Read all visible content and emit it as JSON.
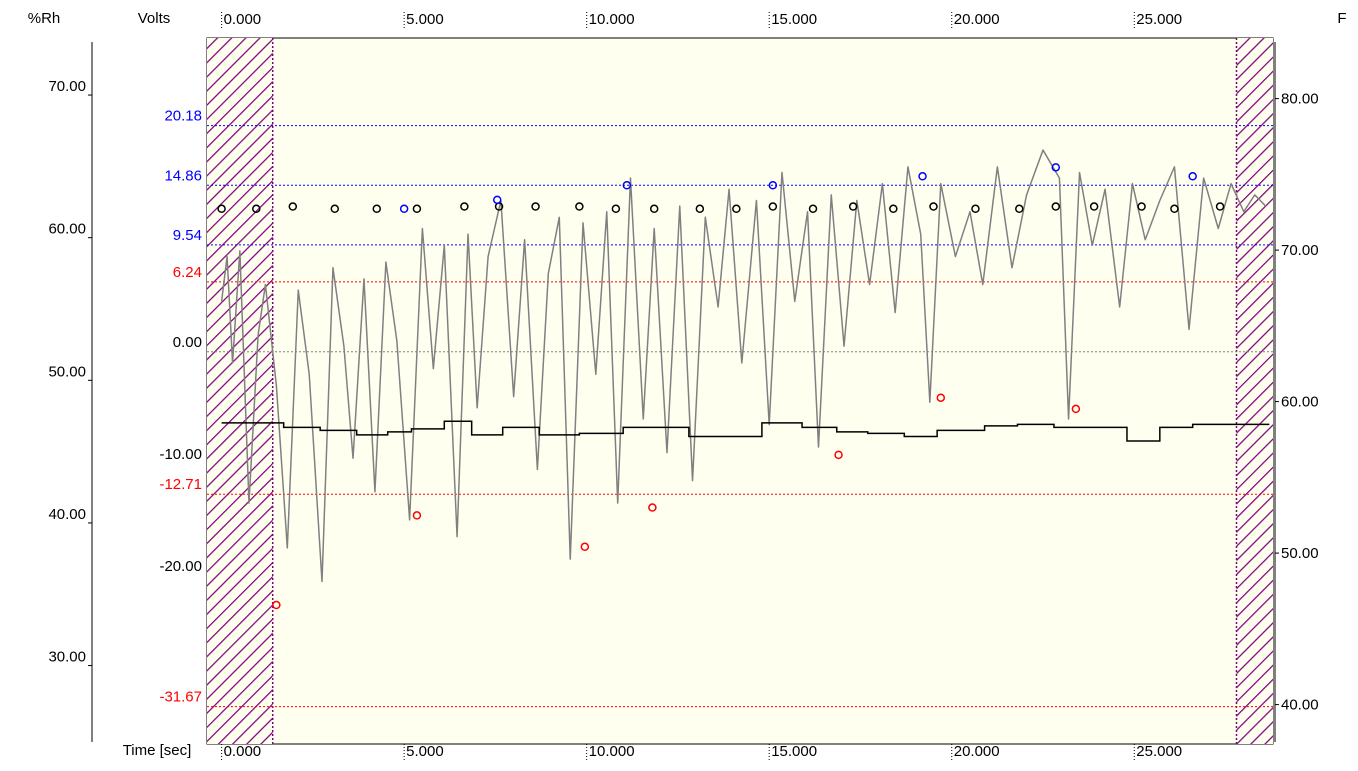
{
  "chart_data": {
    "type": "line",
    "title": "",
    "xlabel": "Time [sec]",
    "xlim": [
      -0.4,
      28.8
    ],
    "x_ticks": [
      "0.000",
      "5.000",
      "10.000",
      "15.000",
      "20.000",
      "25.000"
    ],
    "x_tick_values": [
      0,
      5,
      10,
      15,
      20,
      25
    ],
    "axes": {
      "rh": {
        "label": "%Rh",
        "range": [
          24.5,
          74.0
        ],
        "ticks": [
          "70.00",
          "60.00",
          "50.00",
          "40.00",
          "30.00"
        ],
        "tick_values": [
          70,
          60,
          50,
          40,
          30
        ]
      },
      "volts": {
        "label": "Volts",
        "range": [
          -35.0,
          28.0
        ],
        "ticks": [
          "0.00",
          "-10.00",
          "-20.00"
        ],
        "tick_values": [
          0,
          -10,
          -20
        ]
      },
      "f": {
        "label": "F",
        "range": [
          37.4,
          84.0
        ],
        "ticks": [
          "80.00",
          "70.00",
          "60.00",
          "50.00",
          "40.00"
        ],
        "tick_values": [
          80,
          70,
          60,
          50,
          40
        ]
      }
    },
    "reference_lines": [
      {
        "value": 20.18,
        "label": "20.18",
        "color": "#0000ff"
      },
      {
        "value": 14.86,
        "label": "14.86",
        "color": "#0000ff"
      },
      {
        "value": 9.54,
        "label": "9.54",
        "color": "#0000ff"
      },
      {
        "value": 6.24,
        "label": "6.24",
        "color": "#ff0000"
      },
      {
        "value": 0.0,
        "label": "",
        "color": "#808080"
      },
      {
        "value": -12.71,
        "label": "-12.71",
        "color": "#ff0000"
      },
      {
        "value": -31.67,
        "label": "-31.67",
        "color": "#ff0000"
      }
    ],
    "excluded_regions": [
      [
        -0.4,
        1.4
      ],
      [
        27.8,
        28.8
      ]
    ],
    "signal_color": "#808080",
    "series": [
      {
        "type": "line",
        "axis": "volts",
        "color": "#808080",
        "x": [
          0.0,
          0.15,
          0.3,
          0.5,
          0.75,
          1.0,
          1.2,
          1.5,
          1.8,
          2.1,
          2.4,
          2.75,
          3.05,
          3.35,
          3.6,
          3.9,
          4.2,
          4.5,
          4.8,
          5.15,
          5.5,
          5.8,
          6.1,
          6.45,
          6.75,
          7.0,
          7.3,
          7.65,
          8.0,
          8.3,
          8.65,
          8.95,
          9.25,
          9.55,
          9.9,
          10.25,
          10.55,
          10.85,
          11.2,
          11.55,
          11.85,
          12.2,
          12.55,
          12.9,
          13.25,
          13.6,
          13.9,
          14.25,
          14.65,
          15.0,
          15.35,
          15.7,
          16.05,
          16.35,
          16.7,
          17.05,
          17.4,
          17.75,
          18.1,
          18.45,
          18.8,
          19.15,
          19.4,
          19.7,
          20.1,
          20.5,
          20.85,
          21.25,
          21.65,
          22.05,
          22.5,
          22.95,
          23.2,
          23.5,
          23.85,
          24.2,
          24.6,
          24.95,
          25.3,
          25.7,
          26.1,
          26.5,
          26.9,
          27.3,
          27.65,
          28.0,
          28.3,
          28.6
        ],
        "y": [
          4.5,
          8.5,
          -1.0,
          9.0,
          -13.5,
          1.5,
          6.0,
          -3.0,
          -17.5,
          5.5,
          -2.0,
          -20.5,
          7.5,
          0.5,
          -9.5,
          6.5,
          -12.5,
          8.0,
          1.0,
          -15.0,
          11.0,
          -1.5,
          9.5,
          -16.5,
          10.5,
          -5.0,
          8.5,
          13.5,
          -4.0,
          10.0,
          -10.5,
          7.0,
          12.0,
          -18.5,
          11.5,
          -2.0,
          12.5,
          -13.5,
          15.5,
          -6.0,
          11.0,
          -9.0,
          13.0,
          -11.5,
          12.0,
          4.0,
          14.5,
          -1.0,
          13.5,
          -6.5,
          16.0,
          4.5,
          12.5,
          -8.5,
          14.0,
          0.5,
          13.5,
          6.0,
          15.0,
          3.5,
          16.5,
          10.5,
          -4.5,
          15.0,
          8.5,
          12.5,
          6.0,
          16.5,
          7.5,
          14.0,
          18.0,
          15.5,
          -6.0,
          16.0,
          9.5,
          14.5,
          4.0,
          15.0,
          10.0,
          13.5,
          16.5,
          2.0,
          15.5,
          11.0,
          15.0,
          12.5,
          14.0,
          13.0
        ]
      },
      {
        "type": "step",
        "axis": "f",
        "color": "#000000",
        "x": [
          0.0,
          1.7,
          2.7,
          3.7,
          4.55,
          5.2,
          6.1,
          6.85,
          7.7,
          8.7,
          9.8,
          11.0,
          12.0,
          12.8,
          13.8,
          14.8,
          15.9,
          16.85,
          17.7,
          18.7,
          19.6,
          20.9,
          21.8,
          22.8,
          23.85,
          24.8,
          25.7,
          26.6,
          27.3,
          28.7
        ],
        "y": [
          58.6,
          58.3,
          58.1,
          57.8,
          58.0,
          58.2,
          58.7,
          57.8,
          58.3,
          57.8,
          57.9,
          58.3,
          58.3,
          57.7,
          57.7,
          58.6,
          58.3,
          58.0,
          57.9,
          57.7,
          58.1,
          58.4,
          58.5,
          58.3,
          58.3,
          57.4,
          58.3,
          58.5,
          58.5,
          58.5
        ]
      }
    ],
    "markers": {
      "max_points": {
        "axis": "volts",
        "color": "#0000ff",
        "x": [
          5.0,
          7.55,
          11.1,
          15.1,
          19.2,
          22.85,
          26.6
        ],
        "y": [
          12.76,
          13.56,
          14.86,
          14.86,
          15.66,
          16.46,
          15.66
        ]
      },
      "min_points": {
        "axis": "volts",
        "color": "#ff0000",
        "x": [
          1.5,
          5.35,
          9.95,
          11.8,
          16.9,
          19.7,
          23.4
        ],
        "y": [
          -22.6,
          -14.6,
          -17.4,
          -13.9,
          -9.2,
          -4.1,
          -5.1
        ]
      },
      "cycle_points": {
        "axis": "volts",
        "color": "#000000",
        "x": [
          0.0,
          0.95,
          1.95,
          3.1,
          4.25,
          5.35,
          6.65,
          7.6,
          8.6,
          9.8,
          10.8,
          11.85,
          13.1,
          14.1,
          15.1,
          16.2,
          17.3,
          18.4,
          19.5,
          20.65,
          21.85,
          22.85,
          23.9,
          25.2,
          26.1,
          27.35
        ],
        "y": [
          12.76,
          12.76,
          12.96,
          12.76,
          12.76,
          12.76,
          12.96,
          12.96,
          12.96,
          12.96,
          12.76,
          12.76,
          12.76,
          12.76,
          12.96,
          12.76,
          12.96,
          12.76,
          12.96,
          12.76,
          12.76,
          12.96,
          12.96,
          12.96,
          12.76,
          12.96
        ]
      }
    },
    "grid": false,
    "legend": "none",
    "colors": {
      "plot_background": "#fffff0",
      "hatch": "#800080",
      "max_marker": "#0000ff",
      "min_marker": "#ff0000",
      "cycle_marker": "#000000"
    }
  }
}
